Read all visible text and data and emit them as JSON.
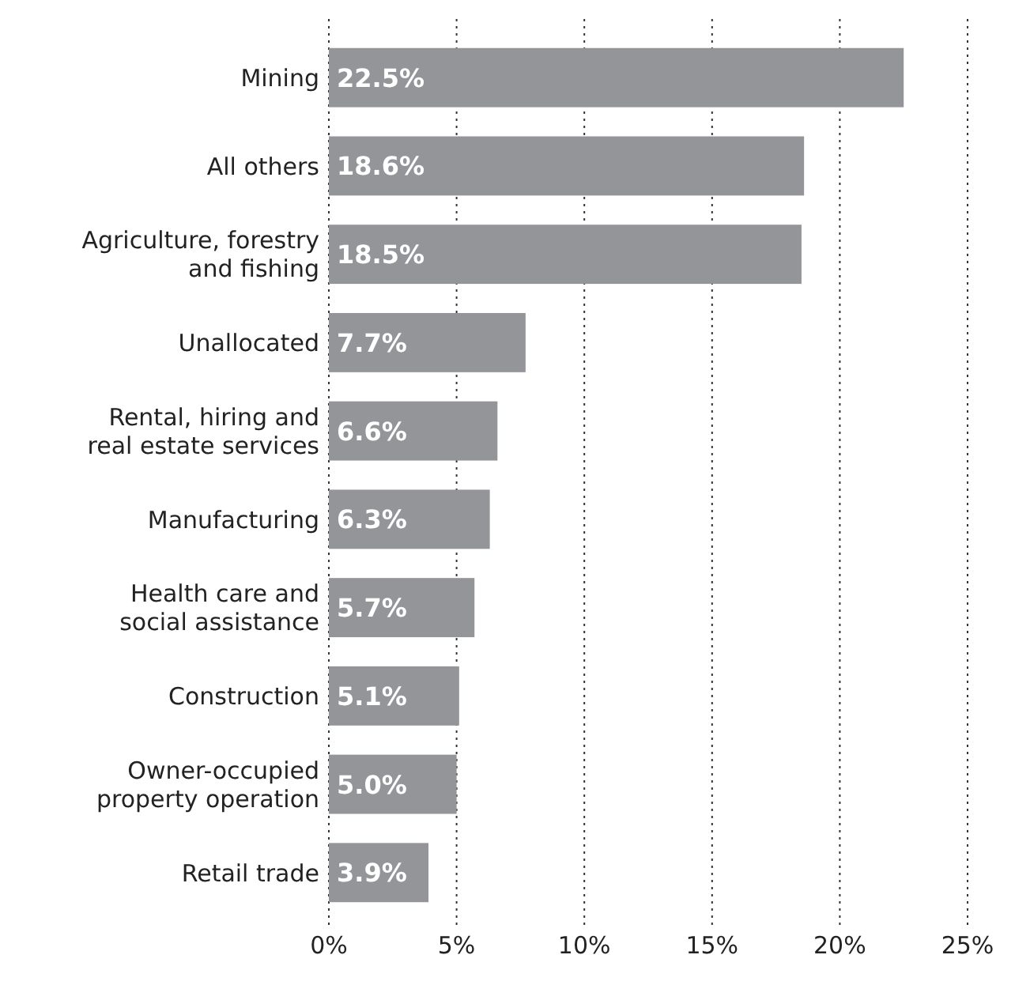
{
  "chart_data": {
    "type": "bar",
    "orientation": "horizontal",
    "categories": [
      "Mining",
      "All others",
      "Agriculture, forestry\nand fishing",
      "Unallocated",
      "Rental, hiring and\nreal estate services",
      "Manufacturing",
      "Health care and\nsocial assistance",
      "Construction",
      "Owner-occupied\nproperty operation",
      "Retail trade"
    ],
    "values": [
      22.5,
      18.6,
      18.5,
      7.7,
      6.6,
      6.3,
      5.7,
      5.1,
      5.0,
      3.9
    ],
    "value_labels": [
      "22.5%",
      "18.6%",
      "18.5%",
      "7.7%",
      "6.6%",
      "6.3%",
      "5.7%",
      "5.1%",
      "5.0%",
      "3.9%"
    ],
    "color": "#939598",
    "xlim": [
      0,
      25
    ],
    "xticks": [
      {
        "value": 0,
        "label": "0%"
      },
      {
        "value": 5,
        "label": "5%"
      },
      {
        "value": 10,
        "label": "10%"
      },
      {
        "value": 15,
        "label": "15%"
      },
      {
        "value": 20,
        "label": "20%"
      },
      {
        "value": 25,
        "label": "25%"
      }
    ],
    "grid": "x"
  }
}
